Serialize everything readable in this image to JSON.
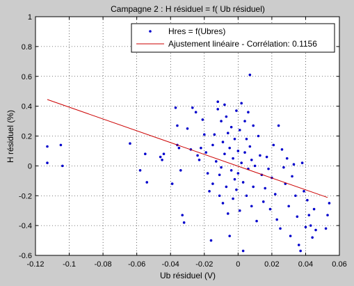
{
  "chart_data": {
    "type": "scatter",
    "title": "Campagne 2 : H résiduel = f( Ub résiduel)",
    "xlabel": "Ub résiduel (V)",
    "ylabel": "H résiduel (%)",
    "xlim": [
      -0.12,
      0.06
    ],
    "ylim": [
      -0.6,
      1.0
    ],
    "xticks": [
      -0.12,
      -0.1,
      -0.08,
      -0.06,
      -0.04,
      -0.02,
      0,
      0.02,
      0.04,
      0.06
    ],
    "xtick_labels": [
      "-0.12",
      "-0.1",
      "-0.08",
      "-0.06",
      "-0.04",
      "-0.02",
      "0",
      "0.02",
      "0.04",
      "0.06"
    ],
    "yticks": [
      -0.6,
      -0.4,
      -0.2,
      0,
      0.2,
      0.4,
      0.6,
      0.8,
      1.0
    ],
    "ytick_labels": [
      "-0.6",
      "-0.4",
      "-0.2",
      "0",
      "0.2",
      "0.4",
      "0.6",
      "0.8",
      "1"
    ],
    "grid": true,
    "legend_position": "top-right",
    "series": [
      {
        "name": "Hres = f(Ubres)",
        "kind": "scatter",
        "color": "#0000cc",
        "points": [
          [
            -0.113,
            0.13
          ],
          [
            -0.113,
            0.02
          ],
          [
            -0.105,
            0.14
          ],
          [
            -0.104,
            0.0
          ],
          [
            -0.064,
            0.15
          ],
          [
            -0.058,
            -0.03
          ],
          [
            -0.055,
            0.08
          ],
          [
            -0.054,
            -0.11
          ],
          [
            -0.046,
            0.06
          ],
          [
            -0.045,
            0.04
          ],
          [
            -0.044,
            0.08
          ],
          [
            -0.039,
            -0.12
          ],
          [
            -0.037,
            0.39
          ],
          [
            -0.036,
            0.27
          ],
          [
            -0.036,
            0.14
          ],
          [
            -0.035,
            0.12
          ],
          [
            -0.034,
            -0.03
          ],
          [
            -0.033,
            -0.33
          ],
          [
            -0.032,
            -0.38
          ],
          [
            -0.03,
            0.25
          ],
          [
            -0.028,
            0.11
          ],
          [
            -0.027,
            0.39
          ],
          [
            -0.025,
            0.36
          ],
          [
            -0.024,
            0.07
          ],
          [
            -0.023,
            0.04
          ],
          [
            -0.022,
            0.12
          ],
          [
            -0.021,
            0.31
          ],
          [
            -0.02,
            0.21
          ],
          [
            -0.019,
            0.09
          ],
          [
            -0.018,
            -0.05
          ],
          [
            -0.017,
            -0.17
          ],
          [
            -0.016,
            -0.5
          ],
          [
            -0.015,
            0.14
          ],
          [
            -0.015,
            -0.12
          ],
          [
            -0.014,
            0.21
          ],
          [
            -0.013,
            0.03
          ],
          [
            -0.012,
            0.43
          ],
          [
            -0.012,
            0.38
          ],
          [
            -0.011,
            -0.06
          ],
          [
            -0.011,
            -0.2
          ],
          [
            -0.01,
            0.3
          ],
          [
            -0.01,
            -0.01
          ],
          [
            -0.009,
            0.16
          ],
          [
            -0.009,
            -0.25
          ],
          [
            -0.008,
            0.41
          ],
          [
            -0.008,
            0.08
          ],
          [
            -0.007,
            0.33
          ],
          [
            -0.007,
            -0.14
          ],
          [
            -0.006,
            0.22
          ],
          [
            -0.006,
            -0.32
          ],
          [
            -0.005,
            0.12
          ],
          [
            -0.005,
            -0.47
          ],
          [
            -0.004,
            0.26
          ],
          [
            -0.004,
            -0.03
          ],
          [
            -0.003,
            0.05
          ],
          [
            -0.003,
            -0.22
          ],
          [
            -0.002,
            0.18
          ],
          [
            -0.002,
            -0.09
          ],
          [
            -0.001,
            0.37
          ],
          [
            -0.001,
            -0.16
          ],
          [
            0.0,
            0.1
          ],
          [
            0.0,
            -0.05
          ],
          [
            0.001,
            0.24
          ],
          [
            0.001,
            -0.3
          ],
          [
            0.002,
            0.42
          ],
          [
            0.002,
            0.02
          ],
          [
            0.003,
            -0.11
          ],
          [
            0.003,
            -0.57
          ],
          [
            0.004,
            0.3
          ],
          [
            0.004,
            0.09
          ],
          [
            0.005,
            0.18
          ],
          [
            0.005,
            -0.2
          ],
          [
            0.006,
            0.36
          ],
          [
            0.006,
            -0.02
          ],
          [
            0.007,
            0.61
          ],
          [
            0.007,
            0.13
          ],
          [
            0.008,
            -0.27
          ],
          [
            0.008,
            0.04
          ],
          [
            0.009,
            0.27
          ],
          [
            0.009,
            -0.14
          ],
          [
            0.01,
            0.0
          ],
          [
            0.011,
            -0.37
          ],
          [
            0.012,
            0.2
          ],
          [
            0.013,
            0.07
          ],
          [
            0.014,
            -0.06
          ],
          [
            0.015,
            -0.24
          ],
          [
            0.016,
            -0.15
          ],
          [
            0.017,
            0.06
          ],
          [
            0.018,
            -0.02
          ],
          [
            0.019,
            -0.29
          ],
          [
            0.02,
            -0.08
          ],
          [
            0.021,
            0.14
          ],
          [
            0.022,
            -0.19
          ],
          [
            0.023,
            -0.36
          ],
          [
            0.024,
            0.27
          ],
          [
            0.025,
            -0.42
          ],
          [
            0.026,
            0.11
          ],
          [
            0.027,
            -0.01
          ],
          [
            0.028,
            -0.12
          ],
          [
            0.029,
            0.05
          ],
          [
            0.03,
            -0.27
          ],
          [
            0.031,
            -0.47
          ],
          [
            0.032,
            -0.07
          ],
          [
            0.033,
            0.01
          ],
          [
            0.034,
            -0.2
          ],
          [
            0.035,
            -0.34
          ],
          [
            0.036,
            -0.53
          ],
          [
            0.037,
            -0.57
          ],
          [
            0.038,
            0.02
          ],
          [
            0.039,
            -0.17
          ],
          [
            0.04,
            -0.41
          ],
          [
            0.041,
            -0.23
          ],
          [
            0.042,
            -0.33
          ],
          [
            0.043,
            -0.4
          ],
          [
            0.044,
            -0.48
          ],
          [
            0.045,
            -0.29
          ],
          [
            0.046,
            -0.43
          ],
          [
            0.052,
            -0.42
          ],
          [
            0.053,
            -0.33
          ],
          [
            0.054,
            -0.25
          ]
        ]
      },
      {
        "name": "Ajustement linéaire - Corrélation: 0.1156",
        "kind": "line",
        "color": "#cc0000",
        "x": [
          -0.113,
          0.053
        ],
        "y": [
          0.445,
          -0.212
        ]
      }
    ]
  }
}
